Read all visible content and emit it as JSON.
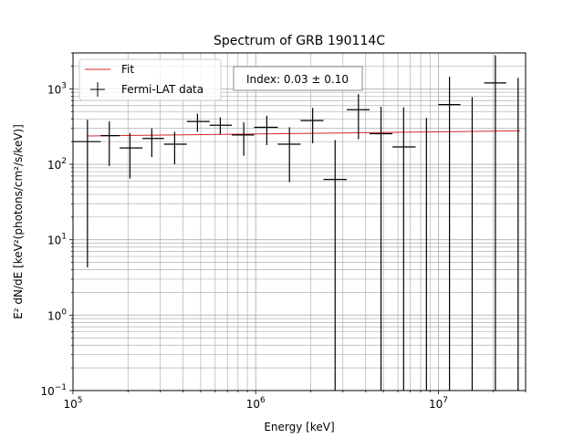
{
  "chart_data": {
    "type": "scatter",
    "title": "Spectrum of GRB 190114C",
    "xlabel": "Energy [keV]",
    "ylabel": "E² dN/dE [keV²(photons/cm²/s/keV)]",
    "x_scale": "log",
    "y_scale": "log",
    "xlim": [
      100000,
      30000000
    ],
    "ylim": [
      0.1,
      3000
    ],
    "grid": "major and minor",
    "legend_position": "top-left",
    "x_ticks": [
      {
        "value": 100000,
        "base": "10",
        "exp": "5"
      },
      {
        "value": 1000000,
        "base": "10",
        "exp": "6"
      },
      {
        "value": 10000000,
        "base": "10",
        "exp": "7"
      }
    ],
    "y_ticks": [
      {
        "value": 0.1,
        "base": "10",
        "exp": "−1"
      },
      {
        "value": 1,
        "base": "10",
        "exp": "0"
      },
      {
        "value": 10,
        "base": "10",
        "exp": "1"
      },
      {
        "value": 100,
        "base": "10",
        "exp": "2"
      },
      {
        "value": 1000,
        "base": "10",
        "exp": "3"
      }
    ],
    "annotation": "Index: 0.03 ± 0.10",
    "series": [
      {
        "name": "Fit",
        "kind": "line",
        "color": "#d62728",
        "x": [
          119000,
          28000000
        ],
        "y": [
          238,
          278
        ]
      },
      {
        "name": "Fermi-LAT data",
        "kind": "errorbar",
        "color": "#000000",
        "points": [
          {
            "x": 120000,
            "xlo": 100000,
            "xhi": 142000,
            "y": 200,
            "ylo": 4.3,
            "yhi": 390
          },
          {
            "x": 158000,
            "xlo": 142000,
            "xhi": 180000,
            "y": 240,
            "ylo": 95,
            "yhi": 370
          },
          {
            "x": 205000,
            "xlo": 180000,
            "xhi": 240000,
            "y": 165,
            "ylo": 65,
            "yhi": 260
          },
          {
            "x": 270000,
            "xlo": 240000,
            "xhi": 315000,
            "y": 220,
            "ylo": 125,
            "yhi": 300
          },
          {
            "x": 360000,
            "xlo": 315000,
            "xhi": 420000,
            "y": 185,
            "ylo": 100,
            "yhi": 270
          },
          {
            "x": 480000,
            "xlo": 420000,
            "xhi": 560000,
            "y": 370,
            "ylo": 270,
            "yhi": 470
          },
          {
            "x": 640000,
            "xlo": 560000,
            "xhi": 740000,
            "y": 330,
            "ylo": 250,
            "yhi": 420
          },
          {
            "x": 860000,
            "xlo": 740000,
            "xhi": 980000,
            "y": 245,
            "ylo": 130,
            "yhi": 360
          },
          {
            "x": 1150000,
            "xlo": 980000,
            "xhi": 1320000,
            "y": 310,
            "ylo": 180,
            "yhi": 440
          },
          {
            "x": 1530000,
            "xlo": 1320000,
            "xhi": 1760000,
            "y": 185,
            "ylo": 58,
            "yhi": 310
          },
          {
            "x": 2050000,
            "xlo": 1760000,
            "xhi": 2350000,
            "y": 380,
            "ylo": 190,
            "yhi": 560
          },
          {
            "x": 2720000,
            "xlo": 2350000,
            "xhi": 3150000,
            "y": 63,
            "ylo": 0.1,
            "yhi": 210
          },
          {
            "x": 3650000,
            "xlo": 3150000,
            "xhi": 4200000,
            "y": 530,
            "ylo": 215,
            "yhi": 850
          },
          {
            "x": 4850000,
            "xlo": 4200000,
            "xhi": 5600000,
            "y": 255,
            "ylo": 0.1,
            "yhi": 580
          },
          {
            "x": 6450000,
            "xlo": 5600000,
            "xhi": 7500000,
            "y": 170,
            "ylo": 0.1,
            "yhi": 570
          },
          {
            "x": 8600000,
            "xlo": 8600000,
            "xhi": 8600000,
            "y": 0.1,
            "ylo": 0.1,
            "yhi": 410
          },
          {
            "x": 11500000,
            "xlo": 10000000,
            "xhi": 13200000,
            "y": 620,
            "ylo": 0.1,
            "yhi": 1450
          },
          {
            "x": 15300000,
            "xlo": 15300000,
            "xhi": 15300000,
            "y": 0.1,
            "ylo": 0.1,
            "yhi": 780
          },
          {
            "x": 20500000,
            "xlo": 17800000,
            "xhi": 23500000,
            "y": 1200,
            "ylo": 0.1,
            "yhi": 2800
          },
          {
            "x": 27300000,
            "xlo": 27300000,
            "xhi": 27300000,
            "y": 0.1,
            "ylo": 0.1,
            "yhi": 1400
          }
        ]
      }
    ]
  }
}
